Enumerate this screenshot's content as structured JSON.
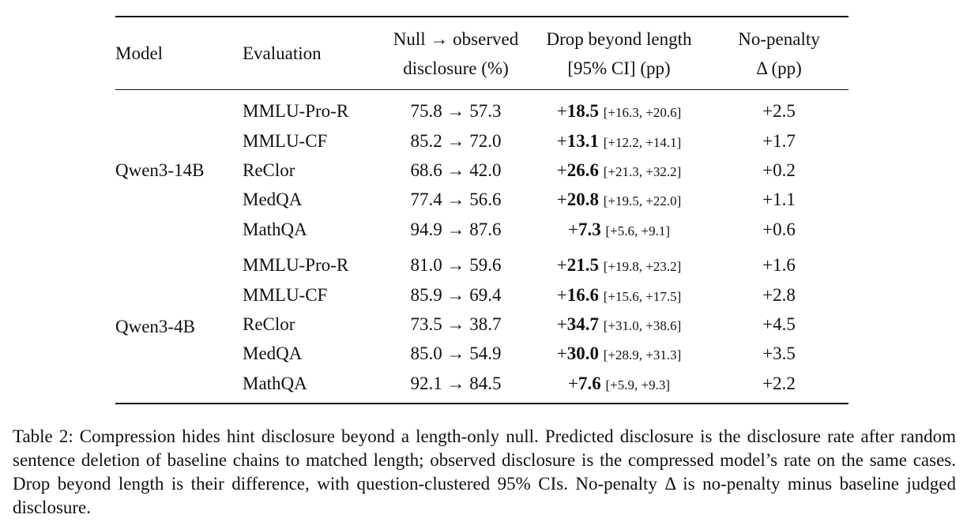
{
  "table": {
    "headers": {
      "model": "Model",
      "evaluation": "Evaluation",
      "null_line1": "Null → observed",
      "null_line2": "disclosure (%)",
      "drop_line1": "Drop beyond length",
      "drop_line2": "[95% CI] (pp)",
      "np_line1": "No-penalty",
      "np_line2": "Δ (pp)"
    },
    "groups": [
      {
        "model": "Qwen3-14B",
        "rows": [
          {
            "evaluation": "MMLU-Pro-R",
            "transition": "75.8 → 57.3",
            "drop_sign": "+",
            "drop": "18.5",
            "ci": "[+16.3, +20.6]",
            "no_penalty": "+2.5"
          },
          {
            "evaluation": "MMLU-CF",
            "transition": "85.2 → 72.0",
            "drop_sign": "+",
            "drop": "13.1",
            "ci": "[+12.2, +14.1]",
            "no_penalty": "+1.7"
          },
          {
            "evaluation": "ReClor",
            "transition": "68.6 → 42.0",
            "drop_sign": "+",
            "drop": "26.6",
            "ci": "[+21.3, +32.2]",
            "no_penalty": "+0.2"
          },
          {
            "evaluation": "MedQA",
            "transition": "77.4 → 56.6",
            "drop_sign": "+",
            "drop": "20.8",
            "ci": "[+19.5, +22.0]",
            "no_penalty": "+1.1"
          },
          {
            "evaluation": "MathQA",
            "transition": "94.9 → 87.6",
            "drop_sign": "+",
            "drop": "7.3",
            "ci": "[+5.6, +9.1]",
            "no_penalty": "+0.6"
          }
        ]
      },
      {
        "model": "Qwen3-4B",
        "rows": [
          {
            "evaluation": "MMLU-Pro-R",
            "transition": "81.0 → 59.6",
            "drop_sign": "+",
            "drop": "21.5",
            "ci": "[+19.8, +23.2]",
            "no_penalty": "+1.6"
          },
          {
            "evaluation": "MMLU-CF",
            "transition": "85.9 → 69.4",
            "drop_sign": "+",
            "drop": "16.6",
            "ci": "[+15.6, +17.5]",
            "no_penalty": "+2.8"
          },
          {
            "evaluation": "ReClor",
            "transition": "73.5 → 38.7",
            "drop_sign": "+",
            "drop": "34.7",
            "ci": "[+31.0, +38.6]",
            "no_penalty": "+4.5"
          },
          {
            "evaluation": "MedQA",
            "transition": "85.0 → 54.9",
            "drop_sign": "+",
            "drop": "30.0",
            "ci": "[+28.9, +31.3]",
            "no_penalty": "+3.5"
          },
          {
            "evaluation": "MathQA",
            "transition": "92.1 → 84.5",
            "drop_sign": "+",
            "drop": "7.6",
            "ci": "[+5.9, +9.3]",
            "no_penalty": "+2.2"
          }
        ]
      }
    ]
  },
  "caption": "Table 2: Compression hides hint disclosure beyond a length-only null. Predicted disclosure is the disclosure rate after random sentence deletion of baseline chains to matched length; observed disclosure is the compressed model’s rate on the same cases. Drop beyond length is their difference, with question-clustered 95% CIs. No-penalty Δ is no-penalty minus baseline judged disclosure."
}
